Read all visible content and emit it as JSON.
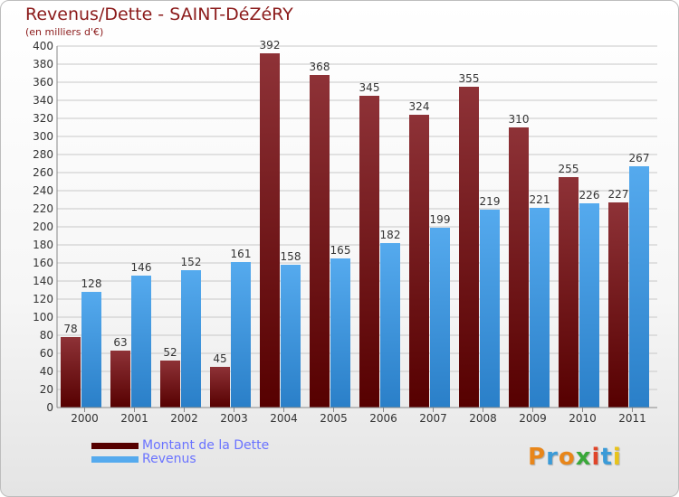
{
  "title": "Revenus/Dette - SAINT-DéZéRY",
  "subtitle": "(en milliers d'€)",
  "logo": {
    "text": "Proxiti",
    "letters": [
      {
        "ch": "P",
        "color": "#e8861a"
      },
      {
        "ch": "r",
        "color": "#3b9bd8"
      },
      {
        "ch": "o",
        "color": "#e8861a"
      },
      {
        "ch": "x",
        "color": "#3aa83a"
      },
      {
        "ch": "i",
        "color": "#e0452a"
      },
      {
        "ch": "t",
        "color": "#3b9bd8"
      },
      {
        "ch": "i",
        "color": "#e8c31a"
      }
    ]
  },
  "colors": {
    "debt_top": "#8e3237",
    "debt_bottom": "#560000",
    "revenue_top": "#55aaee",
    "revenue_bottom": "#2a7fc8",
    "grid": "#c8c8c8",
    "axis_text": "#333333",
    "label_text": "#333333"
  },
  "chart_data": {
    "type": "bar",
    "title": "Revenus/Dette - SAINT-DéZéRY",
    "subtitle": "(en milliers d'€)",
    "categories": [
      "2000",
      "2001",
      "2002",
      "2003",
      "2004",
      "2005",
      "2006",
      "2007",
      "2008",
      "2009",
      "2010",
      "2011"
    ],
    "series": [
      {
        "name": "Montant de la Dette",
        "values": [
          78,
          63,
          52,
          45,
          392,
          368,
          345,
          324,
          355,
          310,
          255,
          227
        ]
      },
      {
        "name": "Revenus",
        "values": [
          128,
          146,
          152,
          161,
          158,
          165,
          182,
          199,
          219,
          221,
          226,
          267
        ]
      }
    ],
    "ylim": [
      0,
      400
    ],
    "yticks": [
      0,
      20,
      40,
      60,
      80,
      100,
      120,
      140,
      160,
      180,
      200,
      220,
      240,
      260,
      280,
      300,
      320,
      340,
      360,
      380,
      400
    ],
    "grid": true,
    "legend_position": "bottom-left"
  }
}
